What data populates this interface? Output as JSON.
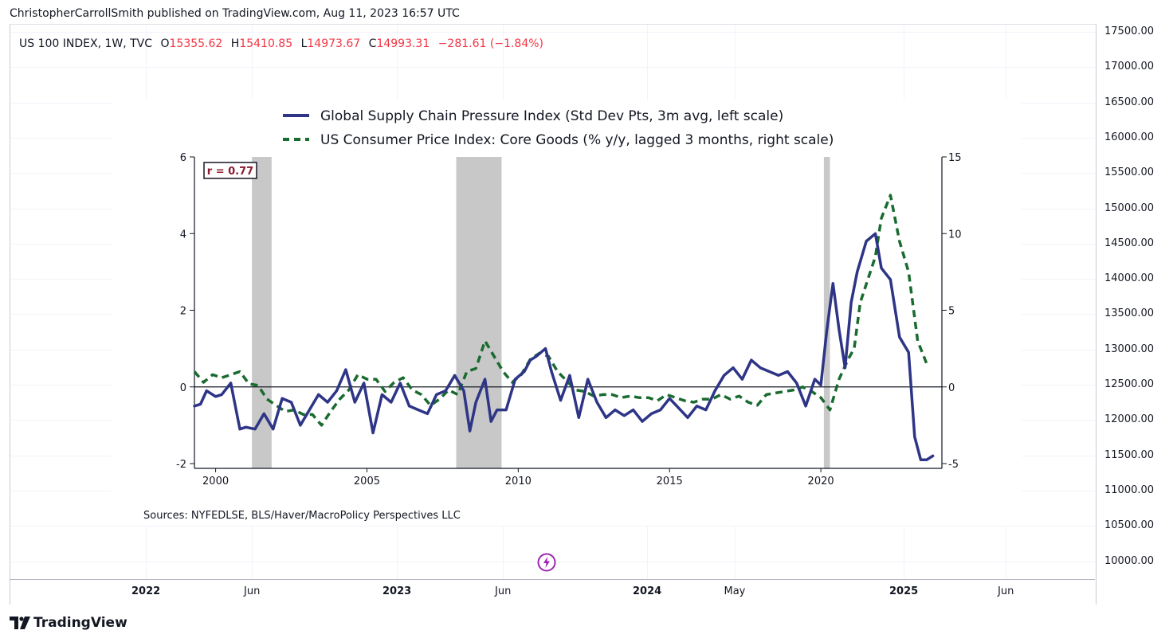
{
  "publisher_line": "ChristopherCarrollSmith published on TradingView.com, Aug 11, 2023 16:57 UTC",
  "symbol_legend": {
    "symbol": "US 100 INDEX, 1W, TVC",
    "open_label": "O",
    "open": "15355.62",
    "high_label": "H",
    "high": "15410.85",
    "low_label": "L",
    "low": "14973.67",
    "close_label": "C",
    "close": "14993.31",
    "change": "−281.61 (−1.84%)"
  },
  "price_scale": [
    "17500.00",
    "17000.00",
    "16500.00",
    "16000.00",
    "15500.00",
    "15000.00",
    "14500.00",
    "14000.00",
    "13500.00",
    "13000.00",
    "12500.00",
    "12000.00",
    "11500.00",
    "11000.00",
    "10500.00",
    "10000.00"
  ],
  "time_axis": [
    {
      "label": "2022",
      "bold": true
    },
    {
      "label": "Jun",
      "bold": false
    },
    {
      "label": "2023",
      "bold": true
    },
    {
      "label": "Jun",
      "bold": false
    },
    {
      "label": "2024",
      "bold": true
    },
    {
      "label": "May",
      "bold": false
    },
    {
      "label": "2025",
      "bold": true
    },
    {
      "label": "Jun",
      "bold": false
    }
  ],
  "brand": "TradingView",
  "colors": {
    "gscpi": "#2e3586",
    "cpi": "#1a6b30",
    "recession": "#c8c8c8",
    "ohlc": "#f23645",
    "rbox": "#8b1a2e"
  },
  "chart_data": {
    "type": "line",
    "legend": [
      "Global Supply Chain Pressure Index (Std Dev Pts, 3m avg, left scale)",
      "US Consumer Price Index: Core Goods (% y/y, lagged 3 months, right scale)"
    ],
    "correlation_label": "r = 0.77",
    "source": "Sources:  NYFEDLSE, BLS/Haver/MacroPolicy Perspectives LLC",
    "x_ticks": [
      "2000",
      "2005",
      "2010",
      "2015",
      "2020"
    ],
    "xlim": [
      1999.3,
      2024.0
    ],
    "left_axis": {
      "ticks": [
        "6",
        "4",
        "2",
        "0",
        "-2"
      ],
      "ylim": [
        -2,
        6
      ]
    },
    "right_axis": {
      "ticks": [
        "15",
        "10",
        "5",
        "0",
        "-5"
      ],
      "ylim": [
        -5,
        15
      ]
    },
    "recessions": [
      [
        2001.2,
        2001.85
      ],
      [
        2007.95,
        2009.45
      ],
      [
        2020.1,
        2020.3
      ]
    ],
    "series": [
      {
        "name": "Global Supply Chain Pressure Index",
        "axis": "left",
        "style": "solid",
        "x": [
          1999.3,
          1999.5,
          1999.7,
          2000.0,
          2000.2,
          2000.5,
          2000.8,
          2001.0,
          2001.3,
          2001.6,
          2001.9,
          2002.2,
          2002.5,
          2002.8,
          2003.1,
          2003.4,
          2003.7,
          2004.0,
          2004.3,
          2004.6,
          2004.9,
          2005.2,
          2005.5,
          2005.8,
          2006.1,
          2006.4,
          2006.7,
          2007.0,
          2007.3,
          2007.6,
          2007.9,
          2008.2,
          2008.4,
          2008.6,
          2008.9,
          2009.1,
          2009.3,
          2009.6,
          2009.9,
          2010.2,
          2010.4,
          2010.6,
          2010.9,
          2011.1,
          2011.4,
          2011.7,
          2012.0,
          2012.3,
          2012.6,
          2012.9,
          2013.2,
          2013.5,
          2013.8,
          2014.1,
          2014.4,
          2014.7,
          2015.0,
          2015.3,
          2015.6,
          2015.9,
          2016.2,
          2016.5,
          2016.8,
          2017.1,
          2017.4,
          2017.7,
          2018.0,
          2018.3,
          2018.6,
          2018.9,
          2019.2,
          2019.5,
          2019.8,
          2020.0,
          2020.2,
          2020.4,
          2020.6,
          2020.8,
          2021.0,
          2021.2,
          2021.5,
          2021.8,
          2022.0,
          2022.3,
          2022.6,
          2022.9,
          2023.1,
          2023.3,
          2023.5,
          2023.7
        ],
        "y": [
          -0.5,
          -0.45,
          -0.1,
          -0.25,
          -0.2,
          0.1,
          -1.1,
          -1.05,
          -1.1,
          -0.7,
          -1.1,
          -0.3,
          -0.4,
          -1.0,
          -0.6,
          -0.2,
          -0.4,
          -0.1,
          0.45,
          -0.4,
          0.1,
          -1.2,
          -0.2,
          -0.4,
          0.1,
          -0.5,
          -0.6,
          -0.7,
          -0.2,
          -0.1,
          0.3,
          -0.1,
          -1.15,
          -0.4,
          0.2,
          -0.9,
          -0.6,
          -0.6,
          0.2,
          0.4,
          0.7,
          0.8,
          1.0,
          0.4,
          -0.35,
          0.3,
          -0.8,
          0.2,
          -0.4,
          -0.8,
          -0.6,
          -0.75,
          -0.6,
          -0.9,
          -0.7,
          -0.6,
          -0.3,
          -0.55,
          -0.8,
          -0.5,
          -0.6,
          -0.1,
          0.3,
          0.5,
          0.2,
          0.7,
          0.5,
          0.4,
          0.3,
          0.4,
          0.1,
          -0.5,
          0.2,
          0.05,
          1.5,
          2.7,
          1.5,
          0.5,
          2.2,
          3.0,
          3.8,
          4.0,
          3.1,
          2.8,
          1.3,
          0.9,
          -1.3,
          -1.9,
          -1.9,
          -1.8
        ]
      },
      {
        "name": "US Consumer Price Index: Core Goods",
        "axis": "right",
        "style": "dashed",
        "x": [
          1999.3,
          1999.6,
          1999.9,
          2000.2,
          2000.5,
          2000.8,
          2001.1,
          2001.4,
          2001.7,
          2002.0,
          2002.3,
          2002.6,
          2002.9,
          2003.2,
          2003.5,
          2003.8,
          2004.1,
          2004.4,
          2004.7,
          2005.0,
          2005.3,
          2005.6,
          2005.9,
          2006.2,
          2006.5,
          2006.8,
          2007.1,
          2007.4,
          2007.7,
          2008.0,
          2008.3,
          2008.6,
          2008.9,
          2009.2,
          2009.5,
          2009.8,
          2010.1,
          2010.4,
          2010.7,
          2011.0,
          2011.3,
          2011.6,
          2011.9,
          2012.2,
          2012.5,
          2012.8,
          2013.1,
          2013.4,
          2013.7,
          2014.0,
          2014.3,
          2014.6,
          2014.9,
          2015.2,
          2015.5,
          2015.8,
          2016.1,
          2016.4,
          2016.7,
          2017.0,
          2017.3,
          2017.6,
          2017.9,
          2018.2,
          2018.5,
          2018.8,
          2019.1,
          2019.4,
          2019.7,
          2020.0,
          2020.3,
          2020.6,
          2020.9,
          2021.1,
          2021.3,
          2021.6,
          2021.8,
          2022.0,
          2022.3,
          2022.6,
          2022.9,
          2023.2,
          2023.5
        ],
        "y": [
          1.0,
          0.3,
          0.8,
          0.6,
          0.8,
          1.0,
          0.2,
          0.1,
          -0.8,
          -1.2,
          -1.6,
          -1.5,
          -1.8,
          -1.8,
          -2.5,
          -1.6,
          -0.8,
          -0.2,
          0.8,
          0.5,
          0.5,
          -0.3,
          0.3,
          0.6,
          -0.2,
          -0.5,
          -1.2,
          -0.8,
          -0.2,
          -0.5,
          1.0,
          1.2,
          3.0,
          2.0,
          1.0,
          0.3,
          0.8,
          1.8,
          2.2,
          2.0,
          1.0,
          0.4,
          -0.2,
          -0.3,
          -0.6,
          -0.5,
          -0.5,
          -0.7,
          -0.6,
          -0.7,
          -0.7,
          -0.9,
          -0.5,
          -0.7,
          -0.9,
          -1.0,
          -0.8,
          -0.8,
          -0.5,
          -0.8,
          -0.6,
          -1.0,
          -1.2,
          -0.5,
          -0.4,
          -0.3,
          -0.2,
          0.0,
          -0.3,
          -0.7,
          -1.5,
          0.5,
          1.8,
          2.5,
          5.5,
          7.3,
          8.5,
          11.0,
          12.5,
          9.5,
          7.5,
          3.0,
          1.5
        ]
      }
    ]
  }
}
